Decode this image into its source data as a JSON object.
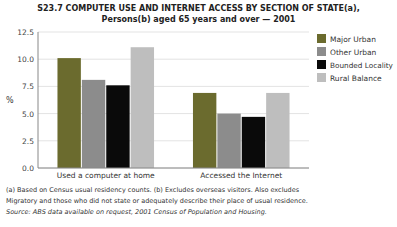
{
  "chart_data": {
    "type": "bar",
    "title": "S23.7   COMPUTER USE AND INTERNET ACCESS BY SECTION OF STATE(a),",
    "subtitle": "Persons(b) aged 65 years and over — 2001",
    "categories": [
      "Used a computer at home",
      "Accessed the Internet"
    ],
    "series": [
      {
        "name": "Major Urban",
        "color": "#6b6b2e",
        "values": [
          10.1,
          6.9
        ]
      },
      {
        "name": "Other Urban",
        "color": "#8c8c8c",
        "values": [
          8.1,
          5.0
        ]
      },
      {
        "name": "Bounded Locality",
        "color": "#0a0a0a",
        "values": [
          7.6,
          4.7
        ]
      },
      {
        "name": "Rural Balance",
        "color": "#bebebe",
        "values": [
          11.1,
          6.9
        ]
      }
    ],
    "y_label": "%",
    "ylim": [
      0,
      12.5
    ],
    "yticks": [
      {
        "value": 0.0,
        "label": "0.0"
      },
      2.5,
      {
        "value": 5.0,
        "label": "5.0"
      },
      7.5,
      {
        "value": 10.0,
        "label": "10.0"
      },
      12.5
    ],
    "grid": true,
    "legend": "right",
    "annotations": [
      "(a)  Based on Census usual residency counts.  (b)  Excludes overseas visitors.  Also excludes",
      "Migratory and those who did not state or adequately describe their place of usual residence.",
      "Source:  ABS data available on request, 2001 Census of Population and Housing."
    ]
  }
}
